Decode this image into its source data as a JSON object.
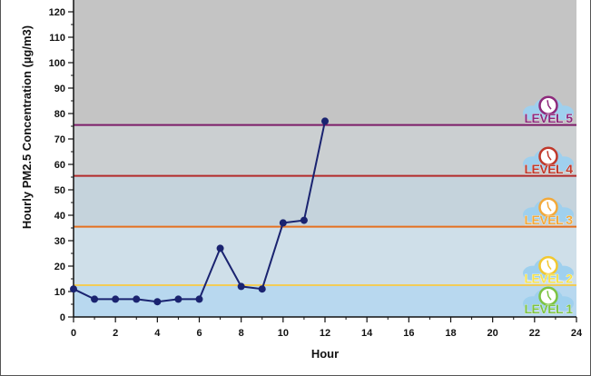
{
  "chart_data": {
    "type": "line",
    "xlabel": "Hour",
    "ylabel": "Hourly PM2.5 Concentration (µg/m3)",
    "xlim": [
      0,
      24
    ],
    "ylim": [
      0,
      120
    ],
    "x_ticks": [
      0,
      2,
      4,
      6,
      8,
      10,
      12,
      14,
      16,
      18,
      20,
      22,
      24
    ],
    "y_ticks": [
      0,
      10,
      20,
      30,
      40,
      50,
      60,
      70,
      80,
      90,
      100,
      110,
      120
    ],
    "series": [
      {
        "x": [
          0,
          1,
          2,
          3,
          4,
          5,
          6,
          7,
          8,
          9,
          10,
          11,
          12
        ],
        "values": [
          11,
          7,
          7,
          7,
          6,
          7,
          7,
          27,
          12,
          11,
          37,
          38,
          77
        ],
        "color": "#1a2370"
      }
    ],
    "bands": [
      {
        "from": 0,
        "to": 12.5,
        "color": "#b8d8ef"
      },
      {
        "from": 12.5,
        "to": 35.5,
        "color": "#cfdfe9"
      },
      {
        "from": 35.5,
        "to": 55.5,
        "color": "#c5d3dc"
      },
      {
        "from": 55.5,
        "to": 75.5,
        "color": "#cbcfd1"
      },
      {
        "from": 75.5,
        "to": 130,
        "color": "#c4c4c4"
      }
    ],
    "thresholds": [
      {
        "y": 12.5,
        "color": "#f2cc57"
      },
      {
        "y": 35.5,
        "color": "#e56f1f"
      },
      {
        "y": 55.5,
        "color": "#b42a2a"
      },
      {
        "y": 75.5,
        "color": "#7d1d69"
      }
    ],
    "levels": [
      {
        "label": "LEVEL 1",
        "y": 6,
        "color": "#7dc342",
        "clock": "#7dc342"
      },
      {
        "label": "LEVEL 2",
        "y": 18,
        "color": "#f6e24e",
        "clock": "#f2c830"
      },
      {
        "label": "LEVEL 3",
        "y": 41,
        "color": "#f3a93a",
        "clock": "#f3a93a"
      },
      {
        "label": "LEVEL 4",
        "y": 61,
        "color": "#c0392b",
        "clock": "#c0392b"
      },
      {
        "label": "LEVEL 5",
        "y": 81,
        "color": "#8e2a7c",
        "clock": "#8e2a7c"
      }
    ],
    "grid": false
  }
}
